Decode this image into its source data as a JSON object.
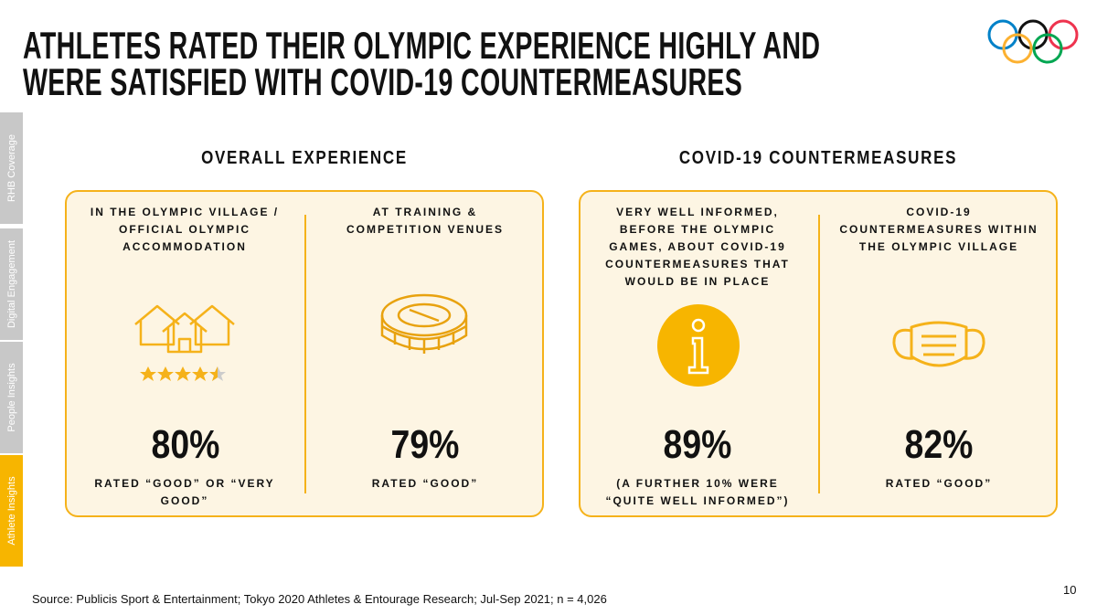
{
  "header": {
    "title_lines": [
      "ATHLETES RATED THEIR OLYMPIC EXPERIENCE HIGHLY AND",
      "WERE SATISFIED WITH COVID-19 COUNTERMEASURES"
    ]
  },
  "sidebar": {
    "tabs": [
      "RHB Coverage",
      "Digital Engagement",
      "People Insights",
      "Athlete Insights"
    ]
  },
  "sections": [
    {
      "heading": "OVERALL EXPERIENCE",
      "panels": [
        {
          "label": "IN THE OLYMPIC VILLAGE / OFFICIAL OLYMPIC ACCOMMODATION",
          "stat": "80%",
          "note": "RATED “GOOD” OR “VERY GOOD”"
        },
        {
          "label": "AT TRAINING & COMPETITION VENUES",
          "stat": "79%",
          "note": "RATED “GOOD”"
        }
      ]
    },
    {
      "heading": "COVID-19 COUNTERMEASURES",
      "panels": [
        {
          "label": "VERY WELL INFORMED, BEFORE THE OLYMPIC GAMES, ABOUT COVID-19 COUNTERMEASURES THAT WOULD BE IN PLACE",
          "stat": "89%",
          "note": "(A FURTHER 10% WERE “QUITE WELL INFORMED”)"
        },
        {
          "label": "COVID-19 COUNTERMEASURES WITHIN THE OLYMPIC VILLAGE",
          "stat": "82%",
          "note": "RATED “GOOD”"
        }
      ]
    }
  ],
  "footer": {
    "source": "Source: Publicis Sport & Entertainment; Tokyo 2020 Athletes & Entourage Research; Jul-Sep 2021; n = 4,026",
    "page": "10"
  }
}
